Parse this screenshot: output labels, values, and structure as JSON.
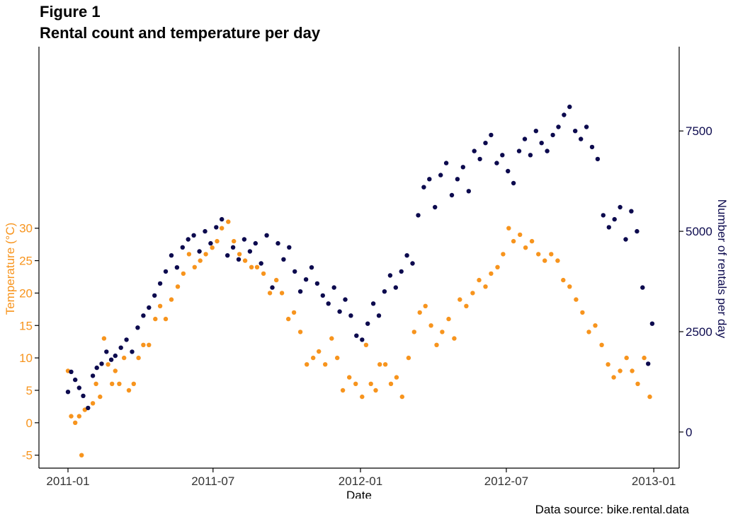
{
  "figure_label": "Figure 1",
  "title": "Rental count and temperature per day",
  "caption": "Data source: bike.rental.data",
  "colors": {
    "temperature": "#f7941d",
    "rentals": "#0c0a4e",
    "axis": "#000000",
    "text": "#333333"
  },
  "chart_data": {
    "type": "scatter",
    "title": "Rental count and temperature per day",
    "xlabel": "Date",
    "x_ticks": [
      "2011-01",
      "2011-07",
      "2012-01",
      "2012-07",
      "2013-01"
    ],
    "xlim": [
      "2011-01-01",
      "2012-12-31"
    ],
    "y_left": {
      "label": "Temperature (°C)",
      "ticks": [
        -5,
        0,
        5,
        10,
        15,
        20,
        25,
        30
      ],
      "lim": [
        -7,
        58
      ]
    },
    "y_right": {
      "label": "Number of rentals per day",
      "ticks": [
        0,
        2500,
        5000,
        7500
      ],
      "tick_labels": [
        "0",
        "2500",
        "5000",
        "7500"
      ],
      "lim": [
        -900,
        9600
      ]
    },
    "grid": false,
    "series": [
      {
        "name": "Temperature (°C)",
        "axis": "left",
        "points": [
          [
            "2011-01-01",
            8
          ],
          [
            "2011-01-05",
            1
          ],
          [
            "2011-01-10",
            0
          ],
          [
            "2011-01-15",
            1
          ],
          [
            "2011-01-18",
            -5
          ],
          [
            "2011-01-22",
            2
          ],
          [
            "2011-02-01",
            3
          ],
          [
            "2011-02-05",
            6
          ],
          [
            "2011-02-10",
            4
          ],
          [
            "2011-02-15",
            13
          ],
          [
            "2011-02-20",
            9
          ],
          [
            "2011-02-25",
            6
          ],
          [
            "2011-03-01",
            8
          ],
          [
            "2011-03-06",
            6
          ],
          [
            "2011-03-12",
            10
          ],
          [
            "2011-03-18",
            5
          ],
          [
            "2011-03-24",
            6
          ],
          [
            "2011-03-30",
            10
          ],
          [
            "2011-04-05",
            12
          ],
          [
            "2011-04-12",
            12
          ],
          [
            "2011-04-20",
            16
          ],
          [
            "2011-04-26",
            18
          ],
          [
            "2011-05-03",
            16
          ],
          [
            "2011-05-10",
            19
          ],
          [
            "2011-05-18",
            21
          ],
          [
            "2011-05-25",
            23
          ],
          [
            "2011-06-01",
            26
          ],
          [
            "2011-06-08",
            24
          ],
          [
            "2011-06-15",
            25
          ],
          [
            "2011-06-22",
            26
          ],
          [
            "2011-06-30",
            27
          ],
          [
            "2011-07-06",
            28
          ],
          [
            "2011-07-12",
            30
          ],
          [
            "2011-07-20",
            31
          ],
          [
            "2011-07-27",
            28
          ],
          [
            "2011-08-03",
            26
          ],
          [
            "2011-08-10",
            25
          ],
          [
            "2011-08-18",
            24
          ],
          [
            "2011-08-25",
            24
          ],
          [
            "2011-09-02",
            23
          ],
          [
            "2011-09-10",
            20
          ],
          [
            "2011-09-18",
            22
          ],
          [
            "2011-09-25",
            20
          ],
          [
            "2011-10-03",
            16
          ],
          [
            "2011-10-10",
            17
          ],
          [
            "2011-10-18",
            14
          ],
          [
            "2011-10-26",
            9
          ],
          [
            "2011-11-03",
            10
          ],
          [
            "2011-11-10",
            11
          ],
          [
            "2011-11-18",
            9
          ],
          [
            "2011-11-26",
            13
          ],
          [
            "2011-12-03",
            10
          ],
          [
            "2011-12-10",
            5
          ],
          [
            "2011-12-18",
            7
          ],
          [
            "2011-12-26",
            6
          ],
          [
            "2012-01-03",
            4
          ],
          [
            "2012-01-08",
            12
          ],
          [
            "2012-01-14",
            6
          ],
          [
            "2012-01-20",
            5
          ],
          [
            "2012-01-25",
            9
          ],
          [
            "2012-02-01",
            9
          ],
          [
            "2012-02-08",
            6
          ],
          [
            "2012-02-15",
            7
          ],
          [
            "2012-02-22",
            4
          ],
          [
            "2012-03-01",
            10
          ],
          [
            "2012-03-08",
            14
          ],
          [
            "2012-03-15",
            17
          ],
          [
            "2012-03-22",
            18
          ],
          [
            "2012-03-29",
            15
          ],
          [
            "2012-04-05",
            12
          ],
          [
            "2012-04-12",
            14
          ],
          [
            "2012-04-20",
            16
          ],
          [
            "2012-04-27",
            13
          ],
          [
            "2012-05-04",
            19
          ],
          [
            "2012-05-12",
            18
          ],
          [
            "2012-05-20",
            20
          ],
          [
            "2012-05-28",
            22
          ],
          [
            "2012-06-05",
            21
          ],
          [
            "2012-06-12",
            23
          ],
          [
            "2012-06-20",
            24
          ],
          [
            "2012-06-27",
            26
          ],
          [
            "2012-07-04",
            30
          ],
          [
            "2012-07-10",
            28
          ],
          [
            "2012-07-18",
            29
          ],
          [
            "2012-07-25",
            27
          ],
          [
            "2012-08-02",
            28
          ],
          [
            "2012-08-10",
            26
          ],
          [
            "2012-08-18",
            25
          ],
          [
            "2012-08-26",
            26
          ],
          [
            "2012-09-03",
            25
          ],
          [
            "2012-09-10",
            22
          ],
          [
            "2012-09-18",
            21
          ],
          [
            "2012-09-26",
            19
          ],
          [
            "2012-10-04",
            17
          ],
          [
            "2012-10-12",
            14
          ],
          [
            "2012-10-20",
            15
          ],
          [
            "2012-10-28",
            12
          ],
          [
            "2012-11-05",
            9
          ],
          [
            "2012-11-12",
            7
          ],
          [
            "2012-11-20",
            8
          ],
          [
            "2012-11-28",
            10
          ],
          [
            "2012-12-05",
            8
          ],
          [
            "2012-12-12",
            6
          ],
          [
            "2012-12-20",
            10
          ],
          [
            "2012-12-27",
            4
          ]
        ]
      },
      {
        "name": "Number of rentals per day",
        "axis": "right",
        "points": [
          [
            "2011-01-01",
            1000
          ],
          [
            "2011-01-05",
            1500
          ],
          [
            "2011-01-10",
            1300
          ],
          [
            "2011-01-15",
            1100
          ],
          [
            "2011-01-20",
            900
          ],
          [
            "2011-01-26",
            600
          ],
          [
            "2011-02-01",
            1400
          ],
          [
            "2011-02-06",
            1600
          ],
          [
            "2011-02-12",
            1700
          ],
          [
            "2011-02-18",
            2000
          ],
          [
            "2011-02-24",
            1800
          ],
          [
            "2011-03-01",
            1900
          ],
          [
            "2011-03-08",
            2100
          ],
          [
            "2011-03-15",
            2300
          ],
          [
            "2011-03-22",
            2000
          ],
          [
            "2011-03-29",
            2600
          ],
          [
            "2011-04-05",
            2900
          ],
          [
            "2011-04-12",
            3100
          ],
          [
            "2011-04-19",
            3400
          ],
          [
            "2011-04-26",
            3700
          ],
          [
            "2011-05-03",
            4000
          ],
          [
            "2011-05-10",
            4400
          ],
          [
            "2011-05-17",
            4100
          ],
          [
            "2011-05-24",
            4600
          ],
          [
            "2011-05-31",
            4800
          ],
          [
            "2011-06-07",
            4900
          ],
          [
            "2011-06-14",
            4500
          ],
          [
            "2011-06-21",
            5000
          ],
          [
            "2011-06-28",
            4700
          ],
          [
            "2011-07-05",
            5100
          ],
          [
            "2011-07-12",
            5300
          ],
          [
            "2011-07-19",
            4400
          ],
          [
            "2011-07-26",
            4600
          ],
          [
            "2011-08-02",
            4300
          ],
          [
            "2011-08-09",
            4800
          ],
          [
            "2011-08-16",
            4500
          ],
          [
            "2011-08-23",
            4700
          ],
          [
            "2011-08-30",
            4200
          ],
          [
            "2011-09-06",
            4900
          ],
          [
            "2011-09-13",
            3600
          ],
          [
            "2011-09-20",
            4700
          ],
          [
            "2011-09-27",
            4300
          ],
          [
            "2011-10-04",
            4600
          ],
          [
            "2011-10-11",
            4000
          ],
          [
            "2011-10-18",
            3500
          ],
          [
            "2011-10-25",
            3800
          ],
          [
            "2011-11-01",
            4100
          ],
          [
            "2011-11-08",
            3700
          ],
          [
            "2011-11-15",
            3400
          ],
          [
            "2011-11-22",
            3200
          ],
          [
            "2011-11-29",
            3600
          ],
          [
            "2011-12-06",
            3000
          ],
          [
            "2011-12-13",
            3300
          ],
          [
            "2011-12-20",
            2900
          ],
          [
            "2011-12-27",
            2400
          ],
          [
            "2012-01-03",
            2300
          ],
          [
            "2012-01-10",
            2700
          ],
          [
            "2012-01-17",
            3200
          ],
          [
            "2012-01-24",
            2900
          ],
          [
            "2012-01-31",
            3500
          ],
          [
            "2012-02-07",
            3900
          ],
          [
            "2012-02-14",
            3600
          ],
          [
            "2012-02-21",
            4000
          ],
          [
            "2012-02-28",
            4400
          ],
          [
            "2012-03-06",
            4200
          ],
          [
            "2012-03-13",
            5400
          ],
          [
            "2012-03-20",
            6100
          ],
          [
            "2012-03-27",
            6300
          ],
          [
            "2012-04-03",
            5600
          ],
          [
            "2012-04-10",
            6400
          ],
          [
            "2012-04-17",
            6700
          ],
          [
            "2012-04-24",
            5900
          ],
          [
            "2012-05-01",
            6300
          ],
          [
            "2012-05-08",
            6600
          ],
          [
            "2012-05-15",
            6000
          ],
          [
            "2012-05-22",
            7000
          ],
          [
            "2012-05-29",
            6800
          ],
          [
            "2012-06-05",
            7200
          ],
          [
            "2012-06-12",
            7400
          ],
          [
            "2012-06-19",
            6700
          ],
          [
            "2012-06-26",
            6900
          ],
          [
            "2012-07-03",
            6500
          ],
          [
            "2012-07-10",
            6200
          ],
          [
            "2012-07-17",
            7000
          ],
          [
            "2012-07-24",
            7300
          ],
          [
            "2012-07-31",
            6900
          ],
          [
            "2012-08-07",
            7500
          ],
          [
            "2012-08-14",
            7200
          ],
          [
            "2012-08-21",
            7000
          ],
          [
            "2012-08-28",
            7400
          ],
          [
            "2012-09-04",
            7600
          ],
          [
            "2012-09-11",
            7900
          ],
          [
            "2012-09-18",
            8100
          ],
          [
            "2012-09-25",
            7500
          ],
          [
            "2012-10-02",
            7300
          ],
          [
            "2012-10-09",
            7600
          ],
          [
            "2012-10-16",
            7100
          ],
          [
            "2012-10-23",
            6800
          ],
          [
            "2012-10-30",
            5400
          ],
          [
            "2012-11-06",
            5100
          ],
          [
            "2012-11-13",
            5300
          ],
          [
            "2012-11-20",
            5600
          ],
          [
            "2012-11-27",
            4800
          ],
          [
            "2012-12-04",
            5500
          ],
          [
            "2012-12-11",
            5000
          ],
          [
            "2012-12-18",
            3600
          ],
          [
            "2012-12-25",
            1700
          ],
          [
            "2012-12-30",
            2700
          ]
        ]
      }
    ]
  }
}
